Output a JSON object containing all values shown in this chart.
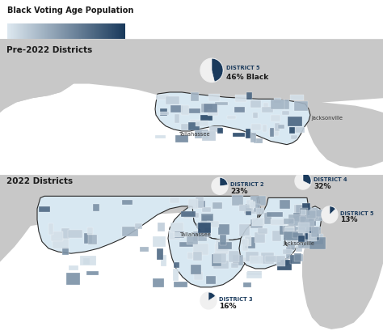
{
  "title_legend": "Black Voting Age Population",
  "color_low": "#dde8f0",
  "color_high": "#1a3a5c",
  "bg_color": "#ffffff",
  "map_gray": "#c8c8c8",
  "district_fill": "#d8e8f2",
  "district_outline": "#2a2a2a",
  "section1_label": "Pre-2022 Districts",
  "section2_label": "2022 Districts",
  "ann_pre": [
    {
      "label": "DISTRICT 5",
      "pct": "46% Black",
      "pct_val": 0.46
    }
  ],
  "ann_post": [
    {
      "label": "DISTRICT 2",
      "pct": "23%",
      "pct_val": 0.23
    },
    {
      "label": "DISTRICT 3",
      "pct": "16%",
      "pct_val": 0.16
    },
    {
      "label": "DISTRICT 4",
      "pct": "32%",
      "pct_val": 0.32
    },
    {
      "label": "DISTRICT 5",
      "pct": "13%",
      "pct_val": 0.13
    }
  ],
  "font_color": "#1a1a1a",
  "label_color": "#1a3a5c"
}
